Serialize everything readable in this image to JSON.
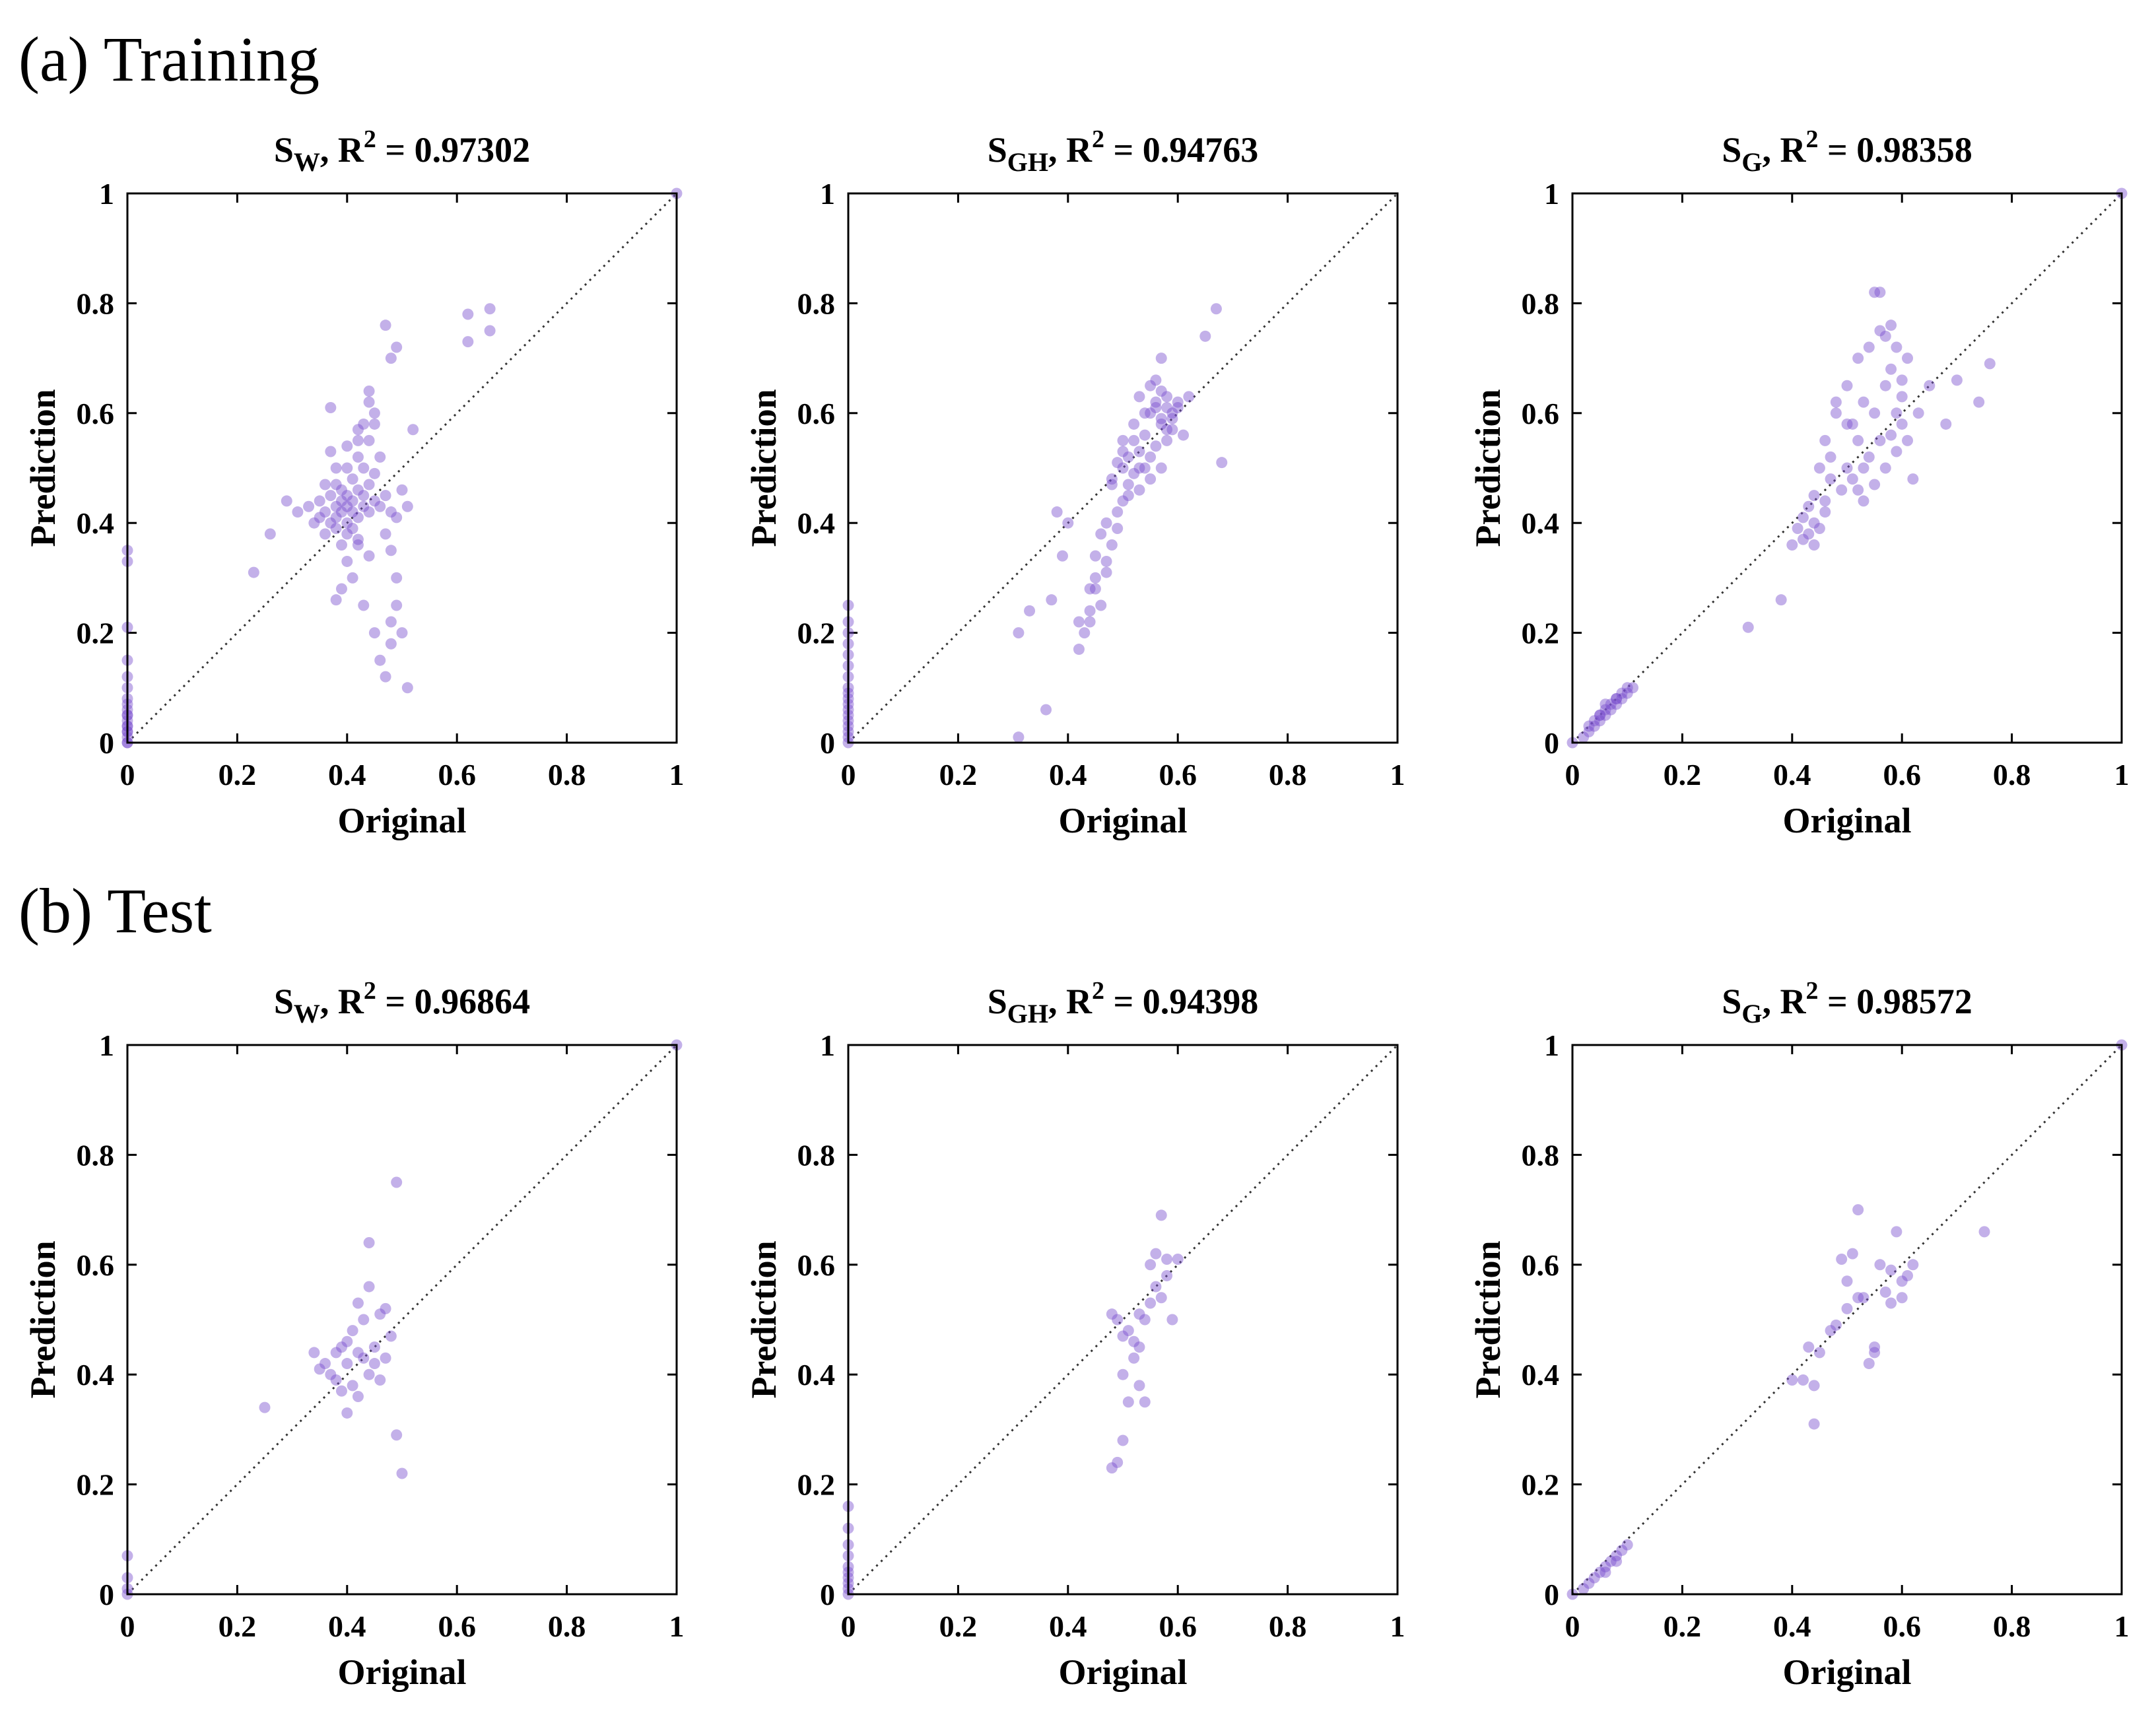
{
  "sections": [
    {
      "label": "(a) Training"
    },
    {
      "label": "(b) Test"
    }
  ],
  "axes": {
    "xlabel": "Original",
    "ylabel": "Prediction",
    "xticks": [
      "0",
      "0.2",
      "0.4",
      "0.6",
      "0.8",
      "1"
    ],
    "yticks": [
      "0",
      "0.2",
      "0.4",
      "0.6",
      "0.8",
      "1"
    ],
    "xlim": [
      0,
      1
    ],
    "ylim": [
      0,
      1
    ]
  },
  "colors": {
    "points": "#7b4fcf",
    "diagonal": "#333333",
    "frame": "#000000"
  },
  "chart_data": [
    {
      "type": "scatter",
      "section": "(a) Training",
      "title": {
        "main": "S",
        "sub": "W",
        "rest": ", R",
        "sup": "2",
        "value": " = 0.97302"
      },
      "xlabel": "Original",
      "ylabel": "Prediction",
      "xlim": [
        0,
        1
      ],
      "ylim": [
        0,
        1
      ],
      "x": [
        0,
        0,
        0,
        0,
        0,
        0,
        0,
        0,
        0,
        0,
        0,
        0,
        0,
        0,
        0,
        0,
        0,
        0,
        0,
        1,
        0.23,
        0.26,
        0.29,
        0.31,
        0.33,
        0.34,
        0.35,
        0.35,
        0.36,
        0.36,
        0.37,
        0.37,
        0.37,
        0.38,
        0.38,
        0.38,
        0.38,
        0.39,
        0.39,
        0.39,
        0.39,
        0.4,
        0.4,
        0.4,
        0.4,
        0.4,
        0.41,
        0.41,
        0.41,
        0.41,
        0.42,
        0.42,
        0.42,
        0.42,
        0.43,
        0.43,
        0.43,
        0.44,
        0.44,
        0.44,
        0.45,
        0.45,
        0.46,
        0.46,
        0.47,
        0.47,
        0.48,
        0.48,
        0.49,
        0.5,
        0.51,
        0.38,
        0.39,
        0.4,
        0.41,
        0.42,
        0.43,
        0.44,
        0.45,
        0.46,
        0.47,
        0.48,
        0.48,
        0.49,
        0.49,
        0.44,
        0.45,
        0.42,
        0.4,
        0.38,
        0.37,
        0.43,
        0.44,
        0.45,
        0.36,
        0.42,
        0.5,
        0.51,
        0.52,
        0.62,
        0.62,
        0.66,
        0.66,
        0.49,
        0.48,
        0.47
      ],
      "y": [
        0,
        0.01,
        0.02,
        0.03,
        0.04,
        0.05,
        0.06,
        0.07,
        0.08,
        0.1,
        0.12,
        0.15,
        0.21,
        0.33,
        0.35,
        0.03,
        0.05,
        0.02,
        0,
        1,
        0.31,
        0.38,
        0.44,
        0.42,
        0.43,
        0.4,
        0.41,
        0.44,
        0.42,
        0.38,
        0.4,
        0.45,
        0.61,
        0.41,
        0.43,
        0.39,
        0.47,
        0.42,
        0.44,
        0.36,
        0.46,
        0.4,
        0.43,
        0.45,
        0.38,
        0.5,
        0.42,
        0.44,
        0.39,
        0.48,
        0.41,
        0.46,
        0.37,
        0.52,
        0.43,
        0.45,
        0.5,
        0.42,
        0.47,
        0.55,
        0.44,
        0.49,
        0.43,
        0.52,
        0.45,
        0.38,
        0.42,
        0.35,
        0.41,
        0.46,
        0.43,
        0.26,
        0.28,
        0.33,
        0.3,
        0.36,
        0.25,
        0.34,
        0.2,
        0.15,
        0.12,
        0.18,
        0.22,
        0.3,
        0.25,
        0.64,
        0.6,
        0.57,
        0.54,
        0.5,
        0.53,
        0.58,
        0.62,
        0.58,
        0.47,
        0.55,
        0.2,
        0.1,
        0.57,
        0.78,
        0.73,
        0.79,
        0.75,
        0.72,
        0.7,
        0.76
      ]
    },
    {
      "type": "scatter",
      "section": "(a) Training",
      "title": {
        "main": "S",
        "sub": "GH",
        "rest": ", R",
        "sup": "2",
        "value": " = 0.94763"
      },
      "xlabel": "Original",
      "ylabel": "Prediction",
      "xlim": [
        0,
        1
      ],
      "ylim": [
        0,
        1
      ],
      "x": [
        0,
        0,
        0,
        0,
        0,
        0,
        0,
        0,
        0,
        0,
        0,
        0,
        0,
        0,
        0,
        0,
        0,
        0,
        0.31,
        0.31,
        0.33,
        0.36,
        0.37,
        0.38,
        0.39,
        0.4,
        0.42,
        0.42,
        0.43,
        0.44,
        0.44,
        0.45,
        0.45,
        0.46,
        0.46,
        0.47,
        0.47,
        0.48,
        0.48,
        0.49,
        0.49,
        0.5,
        0.5,
        0.5,
        0.51,
        0.51,
        0.52,
        0.52,
        0.53,
        0.53,
        0.54,
        0.54,
        0.55,
        0.55,
        0.55,
        0.56,
        0.56,
        0.57,
        0.57,
        0.57,
        0.58,
        0.58,
        0.58,
        0.59,
        0.59,
        0.6,
        0.61,
        0.62,
        0.65,
        0.67,
        0.68,
        0.53,
        0.55,
        0.56,
        0.57,
        0.58,
        0.54,
        0.52,
        0.5,
        0.48,
        0.56,
        0.57,
        0.59,
        0.6,
        0.53,
        0.51,
        0.49,
        0.47,
        0.45,
        0.44
      ],
      "y": [
        0,
        0.01,
        0.02,
        0.03,
        0.04,
        0.05,
        0.06,
        0.07,
        0.08,
        0.09,
        0.1,
        0.12,
        0.14,
        0.16,
        0.18,
        0.2,
        0.22,
        0.25,
        0.01,
        0.2,
        0.24,
        0.06,
        0.26,
        0.42,
        0.34,
        0.4,
        0.17,
        0.22,
        0.2,
        0.28,
        0.24,
        0.3,
        0.34,
        0.25,
        0.38,
        0.31,
        0.4,
        0.36,
        0.48,
        0.42,
        0.51,
        0.44,
        0.5,
        0.55,
        0.47,
        0.52,
        0.49,
        0.58,
        0.46,
        0.53,
        0.5,
        0.56,
        0.48,
        0.6,
        0.52,
        0.54,
        0.62,
        0.5,
        0.59,
        0.64,
        0.55,
        0.61,
        0.63,
        0.57,
        0.6,
        0.62,
        0.56,
        0.63,
        0.74,
        0.79,
        0.51,
        0.63,
        0.65,
        0.61,
        0.58,
        0.57,
        0.6,
        0.55,
        0.53,
        0.47,
        0.66,
        0.7,
        0.59,
        0.61,
        0.5,
        0.45,
        0.39,
        0.33,
        0.28,
        0.22
      ]
    },
    {
      "type": "scatter",
      "section": "(a) Training",
      "title": {
        "main": "S",
        "sub": "G",
        "rest": ", R",
        "sup": "2",
        "value": " = 0.98358"
      },
      "xlabel": "Original",
      "ylabel": "Prediction",
      "xlim": [
        0,
        1
      ],
      "ylim": [
        0,
        1
      ],
      "x": [
        0,
        1,
        0.02,
        0.03,
        0.04,
        0.04,
        0.05,
        0.05,
        0.06,
        0.06,
        0.07,
        0.07,
        0.08,
        0.08,
        0.09,
        0.09,
        0.1,
        0.1,
        0.11,
        0.03,
        0.05,
        0.06,
        0.08,
        0.32,
        0.38,
        0.4,
        0.41,
        0.42,
        0.42,
        0.43,
        0.43,
        0.44,
        0.44,
        0.45,
        0.45,
        0.46,
        0.46,
        0.47,
        0.47,
        0.48,
        0.49,
        0.5,
        0.5,
        0.51,
        0.51,
        0.52,
        0.52,
        0.53,
        0.53,
        0.54,
        0.54,
        0.55,
        0.55,
        0.56,
        0.56,
        0.57,
        0.57,
        0.58,
        0.58,
        0.59,
        0.59,
        0.6,
        0.6,
        0.61,
        0.61,
        0.62,
        0.63,
        0.65,
        0.68,
        0.7,
        0.74,
        0.76,
        0.55,
        0.56,
        0.57,
        0.58,
        0.59,
        0.6,
        0.53,
        0.52,
        0.5,
        0.48,
        0.46,
        0.44
      ],
      "y": [
        0,
        1,
        0.01,
        0.02,
        0.03,
        0.04,
        0.04,
        0.05,
        0.05,
        0.06,
        0.06,
        0.07,
        0.07,
        0.08,
        0.08,
        0.09,
        0.09,
        0.1,
        0.1,
        0.03,
        0.05,
        0.07,
        0.08,
        0.21,
        0.26,
        0.36,
        0.39,
        0.37,
        0.41,
        0.38,
        0.43,
        0.4,
        0.45,
        0.39,
        0.5,
        0.44,
        0.55,
        0.48,
        0.52,
        0.6,
        0.46,
        0.5,
        0.65,
        0.48,
        0.58,
        0.55,
        0.7,
        0.5,
        0.62,
        0.52,
        0.72,
        0.47,
        0.6,
        0.55,
        0.75,
        0.5,
        0.65,
        0.56,
        0.68,
        0.53,
        0.6,
        0.58,
        0.63,
        0.55,
        0.7,
        0.48,
        0.6,
        0.65,
        0.58,
        0.66,
        0.62,
        0.69,
        0.82,
        0.82,
        0.74,
        0.76,
        0.72,
        0.66,
        0.44,
        0.46,
        0.58,
        0.62,
        0.42,
        0.36
      ]
    },
    {
      "type": "scatter",
      "section": "(b) Test",
      "title": {
        "main": "S",
        "sub": "W",
        "rest": ", R",
        "sup": "2",
        "value": " = 0.96864"
      },
      "xlabel": "Original",
      "ylabel": "Prediction",
      "xlim": [
        0,
        1
      ],
      "ylim": [
        0,
        1
      ],
      "x": [
        0,
        0,
        0,
        0,
        1,
        0.25,
        0.34,
        0.35,
        0.36,
        0.37,
        0.38,
        0.38,
        0.39,
        0.39,
        0.4,
        0.4,
        0.41,
        0.41,
        0.42,
        0.42,
        0.43,
        0.43,
        0.44,
        0.44,
        0.45,
        0.45,
        0.46,
        0.46,
        0.47,
        0.47,
        0.48,
        0.49,
        0.5,
        0.4,
        0.42,
        0.44,
        0.49
      ],
      "y": [
        0,
        0.01,
        0.03,
        0.07,
        1,
        0.34,
        0.44,
        0.41,
        0.42,
        0.4,
        0.39,
        0.44,
        0.37,
        0.45,
        0.42,
        0.46,
        0.38,
        0.48,
        0.44,
        0.36,
        0.43,
        0.5,
        0.4,
        0.56,
        0.45,
        0.42,
        0.51,
        0.39,
        0.52,
        0.43,
        0.47,
        0.29,
        0.22,
        0.33,
        0.53,
        0.64,
        0.75
      ]
    },
    {
      "type": "scatter",
      "section": "(b) Test",
      "title": {
        "main": "S",
        "sub": "GH",
        "rest": ", R",
        "sup": "2",
        "value": " = 0.94398"
      },
      "xlabel": "Original",
      "ylabel": "Prediction",
      "xlim": [
        0,
        1
      ],
      "ylim": [
        0,
        1
      ],
      "x": [
        0,
        0,
        0,
        0,
        0,
        0,
        0,
        0,
        0,
        0,
        0.48,
        0.48,
        0.49,
        0.49,
        0.5,
        0.5,
        0.51,
        0.51,
        0.52,
        0.52,
        0.53,
        0.53,
        0.54,
        0.54,
        0.55,
        0.55,
        0.56,
        0.56,
        0.57,
        0.57,
        0.58,
        0.58,
        0.59,
        0.6,
        0.53,
        0.5
      ],
      "y": [
        0,
        0.01,
        0.02,
        0.03,
        0.04,
        0.05,
        0.07,
        0.09,
        0.12,
        0.16,
        0.23,
        0.51,
        0.24,
        0.5,
        0.47,
        0.4,
        0.48,
        0.35,
        0.46,
        0.43,
        0.51,
        0.38,
        0.5,
        0.35,
        0.53,
        0.6,
        0.56,
        0.62,
        0.54,
        0.69,
        0.58,
        0.61,
        0.5,
        0.61,
        0.45,
        0.28
      ]
    },
    {
      "type": "scatter",
      "section": "(b) Test",
      "title": {
        "main": "S",
        "sub": "G",
        "rest": ", R",
        "sup": "2",
        "value": " = 0.98572"
      },
      "xlabel": "Original",
      "ylabel": "Prediction",
      "xlim": [
        0,
        1
      ],
      "ylim": [
        0,
        1
      ],
      "x": [
        0,
        1,
        0.02,
        0.03,
        0.04,
        0.05,
        0.06,
        0.06,
        0.07,
        0.08,
        0.08,
        0.09,
        0.1,
        0.4,
        0.42,
        0.43,
        0.44,
        0.44,
        0.45,
        0.47,
        0.48,
        0.49,
        0.5,
        0.5,
        0.51,
        0.52,
        0.53,
        0.54,
        0.55,
        0.56,
        0.57,
        0.58,
        0.58,
        0.59,
        0.6,
        0.6,
        0.61,
        0.62,
        0.75,
        0.55,
        0.52
      ],
      "y": [
        0,
        1,
        0.01,
        0.02,
        0.03,
        0.04,
        0.04,
        0.05,
        0.06,
        0.06,
        0.07,
        0.08,
        0.09,
        0.39,
        0.39,
        0.45,
        0.31,
        0.38,
        0.44,
        0.48,
        0.49,
        0.61,
        0.52,
        0.57,
        0.62,
        0.7,
        0.54,
        0.42,
        0.45,
        0.6,
        0.55,
        0.53,
        0.59,
        0.66,
        0.54,
        0.57,
        0.58,
        0.6,
        0.66,
        0.44,
        0.54
      ]
    }
  ]
}
